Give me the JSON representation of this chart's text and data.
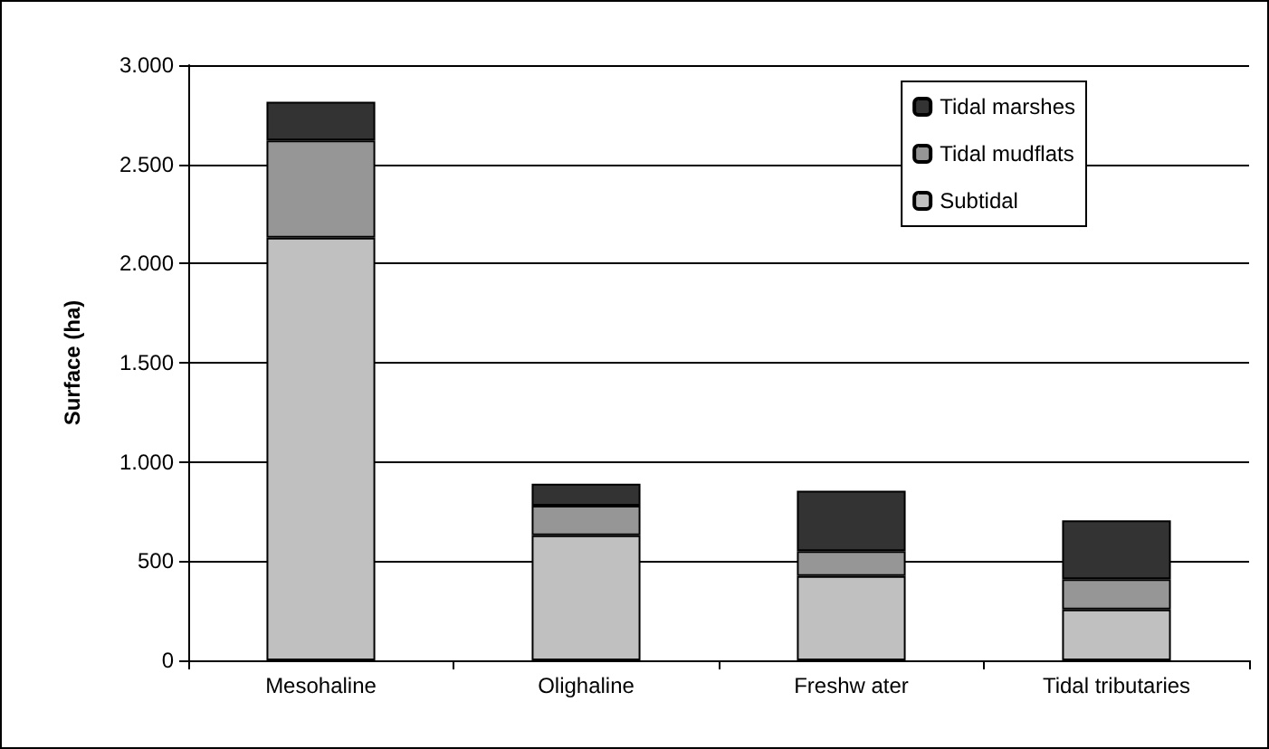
{
  "chart_data": {
    "type": "bar",
    "stacked": true,
    "ylabel": "Surface (ha)",
    "categories": [
      "Mesohaline",
      "Olighaline",
      "Freshw ater",
      "Tidal tributaries"
    ],
    "series": [
      {
        "name": "Subtidal",
        "color": "#c0c0c0",
        "values": [
          2130,
          630,
          425,
          257
        ]
      },
      {
        "name": "Tidal mudflats",
        "color": "#969696",
        "values": [
          490,
          150,
          125,
          152
        ]
      },
      {
        "name": "Tidal marshes",
        "color": "#333333",
        "values": [
          195,
          110,
          305,
          297
        ]
      }
    ],
    "ylim": [
      0,
      3000
    ],
    "yticks": [
      0,
      500,
      {
        "value": 1000,
        "label": "1.000"
      },
      {
        "value": 1500,
        "label": "1.500"
      },
      {
        "value": 2000,
        "label": "2.000"
      },
      {
        "value": 2500,
        "label": "2.500"
      },
      {
        "value": 3000,
        "label": "3.000"
      }
    ],
    "grid": "y",
    "legend": "top right"
  }
}
